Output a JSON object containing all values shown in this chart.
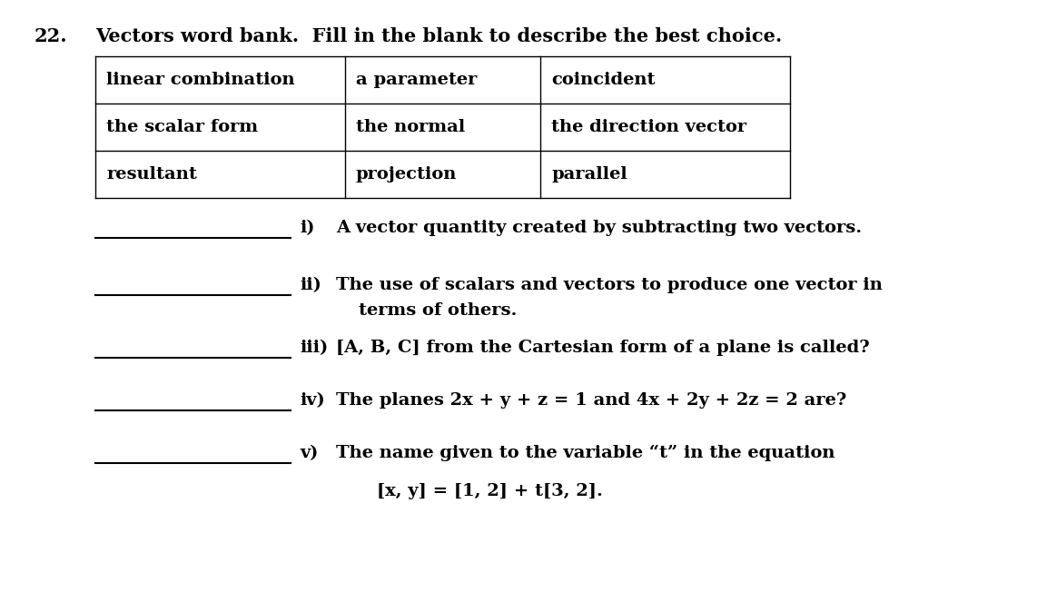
{
  "title_number": "22.",
  "title_text": "Vectors word bank.  Fill in the blank to describe the best choice.",
  "table_data": [
    [
      "linear combination",
      "a parameter",
      "coincident"
    ],
    [
      "the scalar form",
      "the normal",
      "the direction vector"
    ],
    [
      "resultant",
      "projection",
      "parallel"
    ]
  ],
  "questions_i_label": "i)",
  "questions_i_text": "A vector quantity created by subtracting two vectors.",
  "questions_ii_label": "ii)",
  "questions_ii_text": "The use of scalars and vectors to produce one vector in",
  "questions_ii_cont": "terms of others.",
  "questions_iii_label": "iii)",
  "questions_iii_text": "[A, B, C] from the Cartesian form of a plane is called?",
  "questions_iv_label": "iv)",
  "questions_iv_text": "The planes 2x + y + z = 1 and 4x + 2y + 2z = 2 are?",
  "questions_v_label": "v)",
  "questions_v_text": "The name given to the variable “t” in the equation",
  "equation_line": "[x, y] = [1, 2] + t[3, 2].",
  "background_color": "#ffffff",
  "text_color": "#000000",
  "font_size": 14,
  "title_font_size": 15
}
